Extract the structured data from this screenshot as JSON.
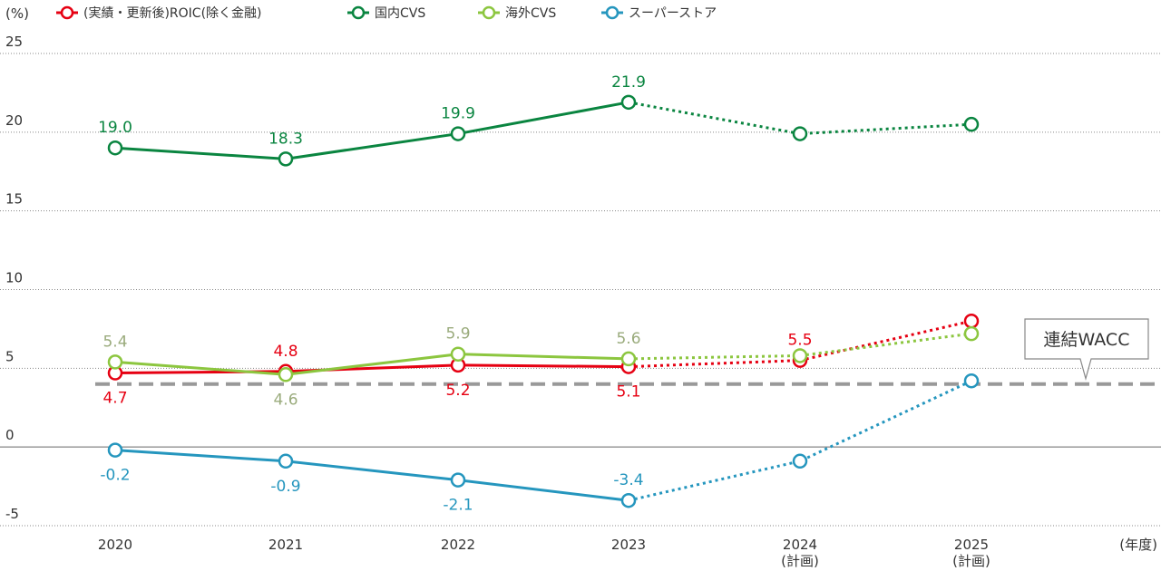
{
  "chart_data": {
    "type": "line",
    "yunit": "(%)",
    "xunit": "(年度)",
    "categories": [
      "2020",
      "2021",
      "2022",
      "2023",
      "2024",
      "2025"
    ],
    "category_sublabels": [
      "",
      "",
      "",
      "",
      "(計画)",
      "(計画)"
    ],
    "ylim": [
      -5,
      25
    ],
    "yticks": [
      "25",
      "20",
      "15",
      "10",
      "5",
      "0",
      "-5"
    ],
    "yticks_values": [
      25,
      20,
      15,
      10,
      5,
      0,
      -5
    ],
    "grid": true,
    "plan_start_index": 3,
    "wacc": {
      "label": "連結WACC",
      "value": 4.0,
      "color": "#999999"
    },
    "series": [
      {
        "name": "(実績・更新後)ROIC(除く金融)",
        "color": "#e60012",
        "values": [
          4.7,
          4.8,
          5.2,
          5.1,
          5.5,
          8.0
        ],
        "labels": [
          "4.7",
          "4.8",
          "5.2",
          "5.1",
          "5.5",
          ""
        ],
        "label_pos": [
          "below",
          "above",
          "below",
          "below",
          "above",
          "none"
        ],
        "label_color": "#e60012"
      },
      {
        "name": "国内CVS",
        "color": "#0a8540",
        "values": [
          19.0,
          18.3,
          19.9,
          21.9,
          19.9,
          20.5
        ],
        "labels": [
          "19.0",
          "18.3",
          "19.9",
          "21.9",
          "",
          ""
        ],
        "label_pos": [
          "above",
          "above",
          "above",
          "above",
          "none",
          "none"
        ],
        "label_color": "#0a8540"
      },
      {
        "name": "海外CVS",
        "color": "#8cc63f",
        "values": [
          5.4,
          4.6,
          5.9,
          5.6,
          5.8,
          7.2
        ],
        "labels": [
          "5.4",
          "4.6",
          "5.9",
          "5.6",
          "",
          ""
        ],
        "label_pos": [
          "above",
          "below",
          "above",
          "above",
          "none",
          "none"
        ],
        "label_color": "#9aab7c"
      },
      {
        "name": "スーパーストア",
        "color": "#2596be",
        "values": [
          -0.2,
          -0.9,
          -2.1,
          -3.4,
          -0.9,
          4.2
        ],
        "labels": [
          "-0.2",
          "-0.9",
          "-2.1",
          "-3.4",
          "",
          ""
        ],
        "label_pos": [
          "below",
          "below",
          "below",
          "above",
          "none",
          "none"
        ],
        "label_color": "#2596be"
      }
    ]
  }
}
